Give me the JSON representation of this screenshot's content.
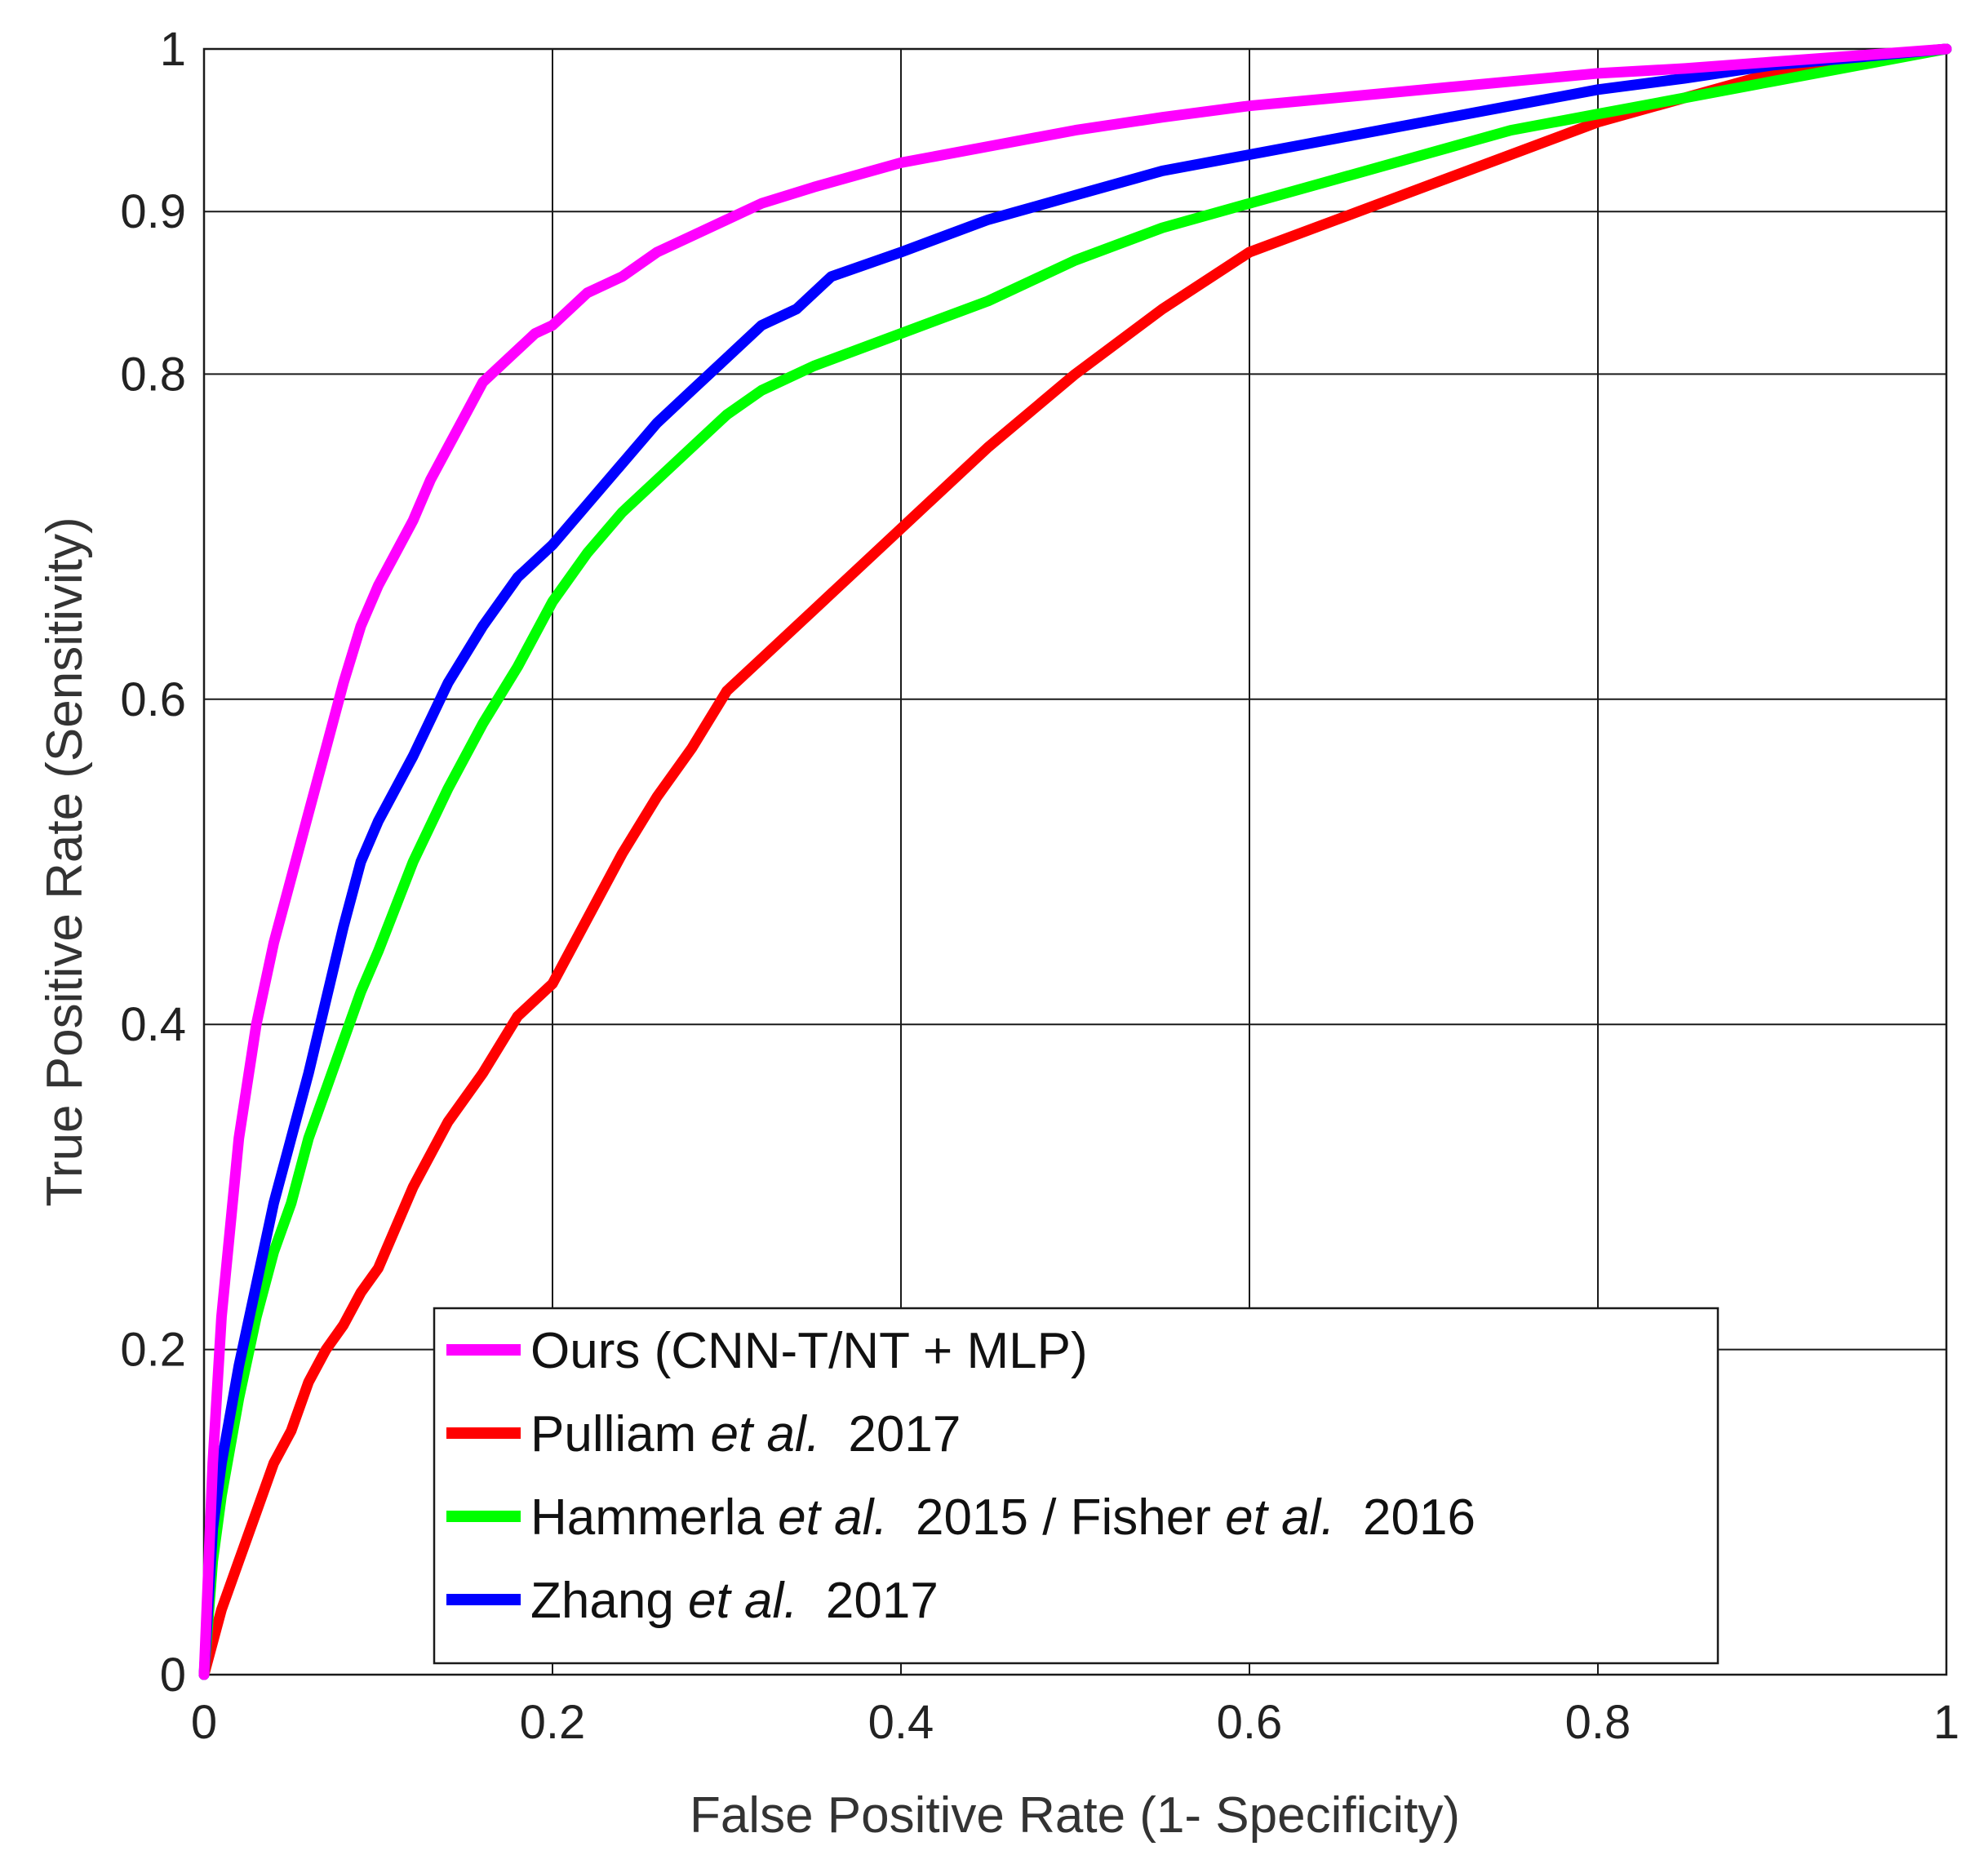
{
  "chart_data": {
    "type": "line",
    "title": "",
    "xlabel": "False Positive Rate (1- Specificity)",
    "ylabel": "True Positive Rate (Sensitivity)",
    "xlim": [
      0,
      1
    ],
    "ylim": [
      0,
      1
    ],
    "x_ticks": [
      0,
      0.2,
      0.4,
      0.6,
      0.8,
      1
    ],
    "y_ticks": [
      0,
      0.2,
      0.4,
      0.6,
      0.8,
      0.9,
      1
    ],
    "x_tick_labels": [
      "0",
      "0.2",
      "0.4",
      "0.6",
      "0.8",
      "1"
    ],
    "y_tick_labels": [
      "0",
      "0.2",
      "0.4",
      "0.6",
      "0.8",
      "0.9",
      "1"
    ],
    "grid": true,
    "legend_position": "bottom-center",
    "series": [
      {
        "name_parts": [
          {
            "text": "Ours (CNN-T/NT + MLP)",
            "italic": false
          }
        ],
        "color": "#ff00ff",
        "x": [
          0,
          0.005,
          0.01,
          0.02,
          0.03,
          0.04,
          0.05,
          0.06,
          0.07,
          0.08,
          0.09,
          0.1,
          0.11,
          0.12,
          0.13,
          0.14,
          0.15,
          0.16,
          0.17,
          0.18,
          0.19,
          0.2,
          0.22,
          0.24,
          0.26,
          0.28,
          0.3,
          0.32,
          0.35,
          0.4,
          0.45,
          0.5,
          0.55,
          0.6,
          0.65,
          0.7,
          0.75,
          0.8,
          0.85,
          0.9,
          0.95,
          1.0
        ],
        "y": [
          0,
          0.13,
          0.22,
          0.33,
          0.4,
          0.45,
          0.49,
          0.53,
          0.57,
          0.61,
          0.645,
          0.67,
          0.69,
          0.71,
          0.735,
          0.755,
          0.775,
          0.795,
          0.805,
          0.815,
          0.825,
          0.83,
          0.85,
          0.86,
          0.875,
          0.885,
          0.895,
          0.905,
          0.915,
          0.93,
          0.94,
          0.95,
          0.958,
          0.965,
          0.97,
          0.975,
          0.98,
          0.985,
          0.988,
          0.992,
          0.996,
          1.0
        ]
      },
      {
        "name_parts": [
          {
            "text": "Pulliam ",
            "italic": false
          },
          {
            "text": "et al.",
            "italic": true
          },
          {
            "text": "  2017",
            "italic": false
          }
        ],
        "color": "#ff0000",
        "x": [
          0,
          0.01,
          0.02,
          0.03,
          0.04,
          0.05,
          0.06,
          0.07,
          0.08,
          0.09,
          0.1,
          0.12,
          0.14,
          0.16,
          0.18,
          0.2,
          0.22,
          0.24,
          0.26,
          0.28,
          0.3,
          0.32,
          0.35,
          0.38,
          0.4,
          0.45,
          0.5,
          0.55,
          0.6,
          0.65,
          0.7,
          0.75,
          0.8,
          0.85,
          0.9,
          0.95,
          1.0
        ],
        "y": [
          0,
          0.04,
          0.07,
          0.1,
          0.13,
          0.15,
          0.18,
          0.2,
          0.215,
          0.235,
          0.25,
          0.3,
          0.34,
          0.37,
          0.405,
          0.425,
          0.465,
          0.505,
          0.54,
          0.57,
          0.605,
          0.625,
          0.655,
          0.685,
          0.705,
          0.755,
          0.8,
          0.84,
          0.875,
          0.895,
          0.915,
          0.935,
          0.955,
          0.97,
          0.985,
          0.995,
          1.0
        ]
      },
      {
        "name_parts": [
          {
            "text": "Hammerla ",
            "italic": false
          },
          {
            "text": "et al.",
            "italic": true
          },
          {
            "text": "  2015 / Fisher ",
            "italic": false
          },
          {
            "text": "et al.",
            "italic": true
          },
          {
            "text": "  2016",
            "italic": false
          }
        ],
        "color": "#00ff00",
        "x": [
          0,
          0.005,
          0.01,
          0.02,
          0.03,
          0.04,
          0.05,
          0.06,
          0.07,
          0.08,
          0.09,
          0.1,
          0.12,
          0.14,
          0.16,
          0.18,
          0.2,
          0.22,
          0.24,
          0.26,
          0.28,
          0.3,
          0.32,
          0.35,
          0.4,
          0.45,
          0.5,
          0.55,
          0.6,
          0.65,
          0.7,
          0.75,
          0.8,
          0.85,
          0.9,
          0.95,
          1.0
        ],
        "y": [
          0,
          0.07,
          0.11,
          0.17,
          0.22,
          0.26,
          0.29,
          0.33,
          0.36,
          0.39,
          0.42,
          0.445,
          0.5,
          0.545,
          0.585,
          0.62,
          0.66,
          0.69,
          0.715,
          0.735,
          0.755,
          0.775,
          0.79,
          0.805,
          0.825,
          0.845,
          0.87,
          0.89,
          0.905,
          0.92,
          0.935,
          0.95,
          0.96,
          0.97,
          0.98,
          0.99,
          1.0
        ]
      },
      {
        "name_parts": [
          {
            "text": "Zhang ",
            "italic": false
          },
          {
            "text": "et al.",
            "italic": true
          },
          {
            "text": "  2017",
            "italic": false
          }
        ],
        "color": "#0000ff",
        "x": [
          0,
          0.005,
          0.01,
          0.02,
          0.03,
          0.04,
          0.05,
          0.06,
          0.07,
          0.08,
          0.09,
          0.1,
          0.12,
          0.14,
          0.16,
          0.18,
          0.2,
          0.22,
          0.24,
          0.26,
          0.28,
          0.3,
          0.32,
          0.34,
          0.36,
          0.4,
          0.45,
          0.5,
          0.55,
          0.6,
          0.65,
          0.7,
          0.75,
          0.8,
          0.85,
          0.9,
          0.95,
          1.0
        ],
        "y": [
          0,
          0.09,
          0.13,
          0.19,
          0.24,
          0.29,
          0.33,
          0.37,
          0.415,
          0.46,
          0.5,
          0.525,
          0.565,
          0.61,
          0.645,
          0.675,
          0.695,
          0.72,
          0.745,
          0.77,
          0.79,
          0.81,
          0.83,
          0.84,
          0.86,
          0.875,
          0.895,
          0.91,
          0.925,
          0.935,
          0.945,
          0.955,
          0.965,
          0.975,
          0.982,
          0.99,
          0.995,
          1.0
        ]
      }
    ]
  }
}
